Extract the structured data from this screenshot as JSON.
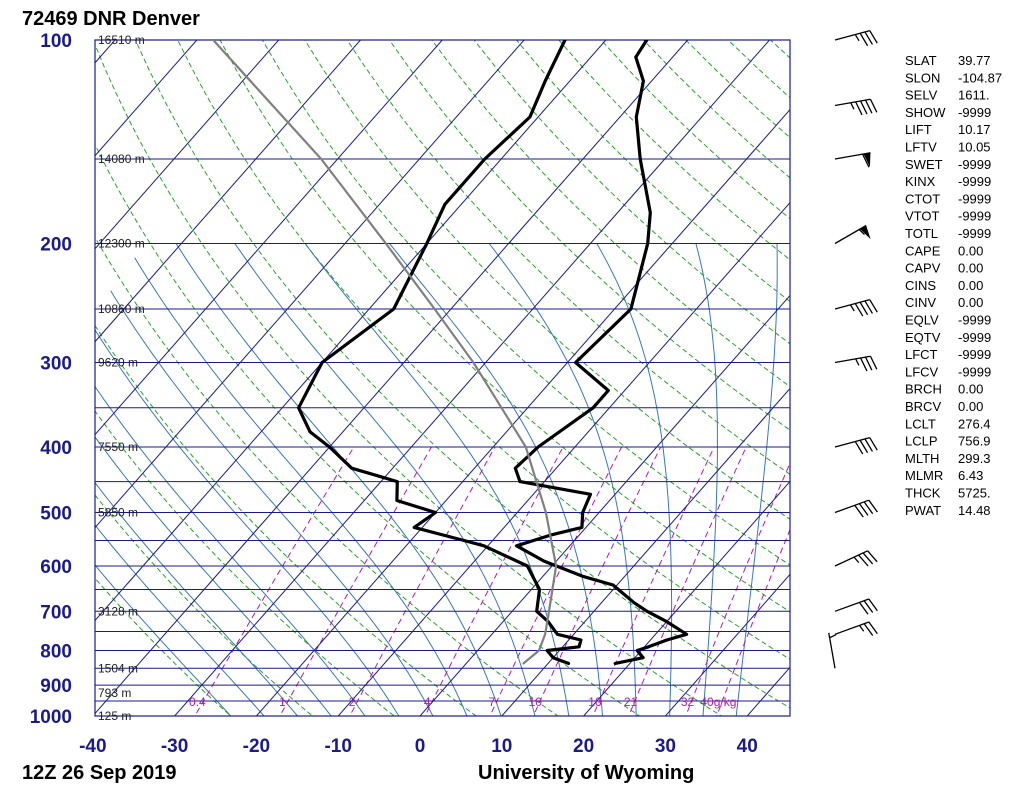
{
  "header": {
    "title": "72469 DNR Denver"
  },
  "footer": {
    "date": "12Z 26 Sep 2019",
    "source": "University of Wyoming"
  },
  "colors": {
    "isobar": "#1a1a8c",
    "isotherm": "#1a1a8c",
    "dry_adiabat": "#2aa02a",
    "moist_adiabat": "#3a78b4",
    "mixing_ratio": "#b01ab0",
    "parcel": "#808080",
    "profile": "#000000"
  },
  "chart_data": {
    "type": "line",
    "subtype": "skew-t log-p",
    "xlim": [
      -40,
      45
    ],
    "ylim": [
      1000,
      100
    ],
    "y_scale": "log",
    "pressure_labels": [
      100,
      200,
      300,
      400,
      500,
      600,
      700,
      800,
      900,
      1000
    ],
    "temperature_ticks": [
      "-40",
      "-30",
      "-20",
      "-10",
      "0",
      "10",
      "20",
      "30",
      "40"
    ],
    "temperature_tick_values": [
      -40,
      -30,
      -20,
      -10,
      0,
      10,
      20,
      30,
      40
    ],
    "height_labels": [
      {
        "p": 100,
        "label": "16510 m"
      },
      {
        "p": 150,
        "label": "14080 m"
      },
      {
        "p": 200,
        "label": "12300 m"
      },
      {
        "p": 250,
        "label": "10860 m"
      },
      {
        "p": 300,
        "label": "9620 m"
      },
      {
        "p": 400,
        "label": "7550 m"
      },
      {
        "p": 500,
        "label": "5850 m"
      },
      {
        "p": 700,
        "label": "3128 m"
      },
      {
        "p": 850,
        "label": "1504 m"
      },
      {
        "p": 925,
        "label": "793 m"
      },
      {
        "p": 1000,
        "label": "125 m"
      }
    ],
    "mixing_ratio_labels": [
      "0.4",
      "1",
      "2",
      "4",
      "7",
      "10",
      "16",
      "21",
      "32",
      "40g/kg"
    ],
    "mixing_ratio_values": [
      0.4,
      1,
      2,
      4,
      7,
      10,
      16,
      21,
      32,
      40
    ],
    "series": [
      {
        "name": "",
        "role": "temperature",
        "points": [
          [
            836,
            18.2
          ],
          [
            820,
            21.0
          ],
          [
            800,
            19.5
          ],
          [
            790,
            20.5
          ],
          [
            772,
            22.0
          ],
          [
            757,
            23.8
          ],
          [
            725,
            20.0
          ],
          [
            700,
            16.5
          ],
          [
            680,
            14.0
          ],
          [
            640,
            9.5
          ],
          [
            622,
            5.0
          ],
          [
            590,
            -1.5
          ],
          [
            560,
            -6.5
          ],
          [
            540,
            -3.5
          ],
          [
            526,
            -0.5
          ],
          [
            500,
            -2.0
          ],
          [
            470,
            -3.0
          ],
          [
            450,
            -13.0
          ],
          [
            430,
            -15.0
          ],
          [
            400,
            -14.5
          ],
          [
            350,
            -12.0
          ],
          [
            330,
            -12.0
          ],
          [
            300,
            -19.0
          ],
          [
            250,
            -18.0
          ],
          [
            200,
            -23.0
          ],
          [
            180,
            -26.0
          ],
          [
            150,
            -33.0
          ],
          [
            130,
            -38.0
          ],
          [
            115,
            -41.0
          ],
          [
            106,
            -44.5
          ],
          [
            100,
            -45.0
          ]
        ]
      },
      {
        "name": "",
        "role": "dewpoint",
        "points": [
          [
            836,
            12.5
          ],
          [
            820,
            10.0
          ],
          [
            800,
            8.5
          ],
          [
            790,
            12.0
          ],
          [
            772,
            11.5
          ],
          [
            757,
            8.0
          ],
          [
            725,
            5.5
          ],
          [
            700,
            3.0
          ],
          [
            650,
            1.0
          ],
          [
            600,
            -3.0
          ],
          [
            560,
            -10.5
          ],
          [
            550,
            -13.5
          ],
          [
            526,
            -21.0
          ],
          [
            500,
            -20.0
          ],
          [
            480,
            -26.0
          ],
          [
            450,
            -28.0
          ],
          [
            430,
            -35.0
          ],
          [
            400,
            -40.0
          ],
          [
            380,
            -44.0
          ],
          [
            350,
            -48.0
          ],
          [
            300,
            -50.0
          ],
          [
            250,
            -47.0
          ],
          [
            200,
            -50.0
          ],
          [
            175,
            -52.0
          ],
          [
            150,
            -52.0
          ],
          [
            130,
            -51.0
          ],
          [
            115,
            -53.0
          ],
          [
            100,
            -55.0
          ]
        ]
      },
      {
        "name": "",
        "role": "parcel",
        "points": [
          [
            836,
            7.0
          ],
          [
            800,
            7.5
          ],
          [
            757,
            6.5
          ],
          [
            700,
            4.5
          ],
          [
            600,
            0.5
          ],
          [
            500,
            -6.5
          ],
          [
            400,
            -16.0
          ],
          [
            300,
            -31.5
          ],
          [
            250,
            -42.0
          ],
          [
            200,
            -55.0
          ],
          [
            150,
            -72.0
          ],
          [
            100,
            -98.0
          ]
        ]
      }
    ],
    "wind_barbs": [
      {
        "p": 850,
        "dir": 170,
        "spd": 5
      },
      {
        "p": 757,
        "dir": 250,
        "spd": 25
      },
      {
        "p": 700,
        "dir": 250,
        "spd": 30
      },
      {
        "p": 600,
        "dir": 245,
        "spd": 35
      },
      {
        "p": 500,
        "dir": 250,
        "spd": 40
      },
      {
        "p": 400,
        "dir": 255,
        "spd": 40
      },
      {
        "p": 300,
        "dir": 260,
        "spd": 35
      },
      {
        "p": 250,
        "dir": 255,
        "spd": 45
      },
      {
        "p": 200,
        "dir": 240,
        "spd": 55
      },
      {
        "p": 150,
        "dir": 260,
        "spd": 60
      },
      {
        "p": 125,
        "dir": 260,
        "spd": 45
      },
      {
        "p": 100,
        "dir": 255,
        "spd": 35
      }
    ]
  },
  "indices": [
    {
      "key": "SLAT",
      "value": "39.77"
    },
    {
      "key": "SLON",
      "value": "-104.87"
    },
    {
      "key": "SELV",
      "value": "1611."
    },
    {
      "key": "SHOW",
      "value": "-9999"
    },
    {
      "key": "LIFT",
      "value": "10.17"
    },
    {
      "key": "LFTV",
      "value": "10.05"
    },
    {
      "key": "SWET",
      "value": "-9999"
    },
    {
      "key": "KINX",
      "value": "-9999"
    },
    {
      "key": "CTOT",
      "value": "-9999"
    },
    {
      "key": "VTOT",
      "value": "-9999"
    },
    {
      "key": "TOTL",
      "value": "-9999"
    },
    {
      "key": "CAPE",
      "value": "0.00"
    },
    {
      "key": "CAPV",
      "value": "0.00"
    },
    {
      "key": "CINS",
      "value": "0.00"
    },
    {
      "key": "CINV",
      "value": "0.00"
    },
    {
      "key": "EQLV",
      "value": "-9999"
    },
    {
      "key": "EQTV",
      "value": "-9999"
    },
    {
      "key": "LFCT",
      "value": "-9999"
    },
    {
      "key": "LFCV",
      "value": "-9999"
    },
    {
      "key": "BRCH",
      "value": "0.00"
    },
    {
      "key": "BRCV",
      "value": "0.00"
    },
    {
      "key": "LCLT",
      "value": "276.4"
    },
    {
      "key": "LCLP",
      "value": "756.9"
    },
    {
      "key": "MLTH",
      "value": "299.3"
    },
    {
      "key": "MLMR",
      "value": "6.43"
    },
    {
      "key": "THCK",
      "value": "5725."
    },
    {
      "key": "PWAT",
      "value": "14.48"
    }
  ]
}
